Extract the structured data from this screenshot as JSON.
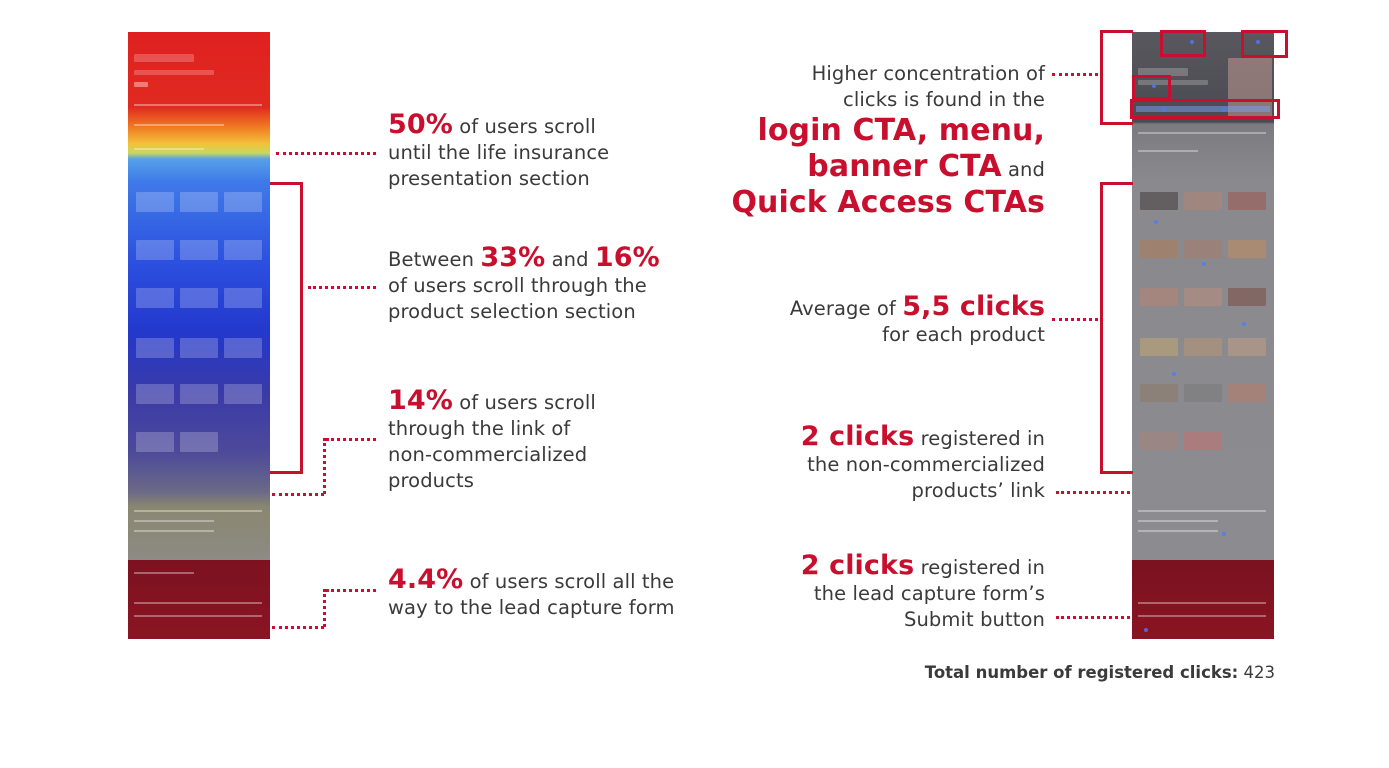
{
  "left_annotations": {
    "a1": {
      "highlight": "50%",
      "text": "of users scroll until the life insurance presentation section",
      "lines": [
        "of users scroll",
        "until the life insurance",
        "presentation section"
      ]
    },
    "a2": {
      "pre": "Between",
      "h1": "33%",
      "mid": "and",
      "h2": "16%",
      "lines": [
        "of users scroll through the",
        "product selection section"
      ]
    },
    "a3": {
      "highlight": "14%",
      "lines": [
        "of users scroll",
        "through the link of",
        "non-commercialized",
        "products"
      ]
    },
    "a4": {
      "highlight": "4.4%",
      "lines": [
        "of users scroll all the",
        "way to the lead capture form"
      ]
    }
  },
  "right_annotations": {
    "b1": {
      "lines": [
        "Higher concentration of",
        "clicks is found in the"
      ],
      "h1": "login CTA, menu,",
      "h2": "banner CTA",
      "and": "and",
      "h3": "Quick Access CTAs"
    },
    "b2": {
      "pre": "Average of",
      "highlight": "5,5 clicks",
      "line2": "for each product"
    },
    "b3": {
      "highlight": "2 clicks",
      "line1_rest": "registered in",
      "lines": [
        "the non-commercialized",
        "products’ link"
      ]
    },
    "b4": {
      "highlight": "2 clicks",
      "line1_rest": "registered in",
      "lines": [
        "the lead capture form’s",
        "Submit button"
      ]
    }
  },
  "total": {
    "label": "Total number of registered clicks:",
    "value": "423"
  },
  "colors": {
    "accent": "#c8102e",
    "text": "#3a3a3a"
  }
}
